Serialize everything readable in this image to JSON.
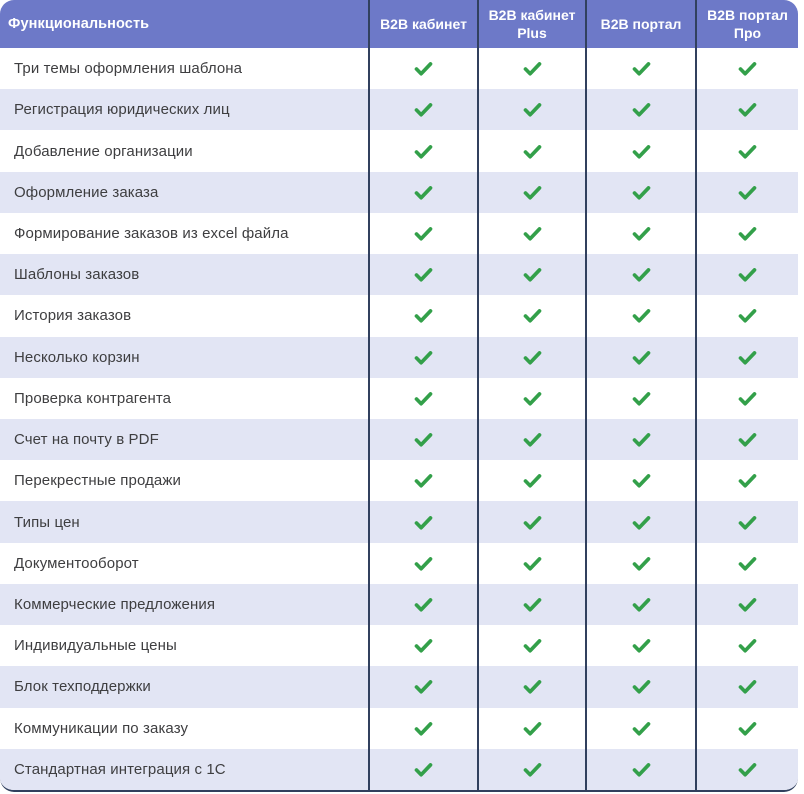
{
  "table": {
    "feature_column_header": "Функциональность",
    "plan_columns": [
      "B2B кабинет",
      "B2B кабинет Plus",
      "B2B портал",
      "B2B портал Про"
    ],
    "rows": [
      {
        "feature": "Три темы оформления шаблона",
        "availability": [
          true,
          true,
          true,
          true
        ]
      },
      {
        "feature": "Регистрация юридических лиц",
        "availability": [
          true,
          true,
          true,
          true
        ]
      },
      {
        "feature": "Добавление организации",
        "availability": [
          true,
          true,
          true,
          true
        ]
      },
      {
        "feature": "Оформление заказа",
        "availability": [
          true,
          true,
          true,
          true
        ]
      },
      {
        "feature": "Формирование заказов из excel файла",
        "availability": [
          true,
          true,
          true,
          true
        ]
      },
      {
        "feature": "Шаблоны заказов",
        "availability": [
          true,
          true,
          true,
          true
        ]
      },
      {
        "feature": "История заказов",
        "availability": [
          true,
          true,
          true,
          true
        ]
      },
      {
        "feature": "Несколько корзин",
        "availability": [
          true,
          true,
          true,
          true
        ]
      },
      {
        "feature": "Проверка контрагента",
        "availability": [
          true,
          true,
          true,
          true
        ]
      },
      {
        "feature": "Счет на почту в PDF",
        "availability": [
          true,
          true,
          true,
          true
        ]
      },
      {
        "feature": "Перекрестные продажи",
        "availability": [
          true,
          true,
          true,
          true
        ]
      },
      {
        "feature": "Типы цен",
        "availability": [
          true,
          true,
          true,
          true
        ]
      },
      {
        "feature": "Документооборот",
        "availability": [
          true,
          true,
          true,
          true
        ]
      },
      {
        "feature": "Коммерческие предложения",
        "availability": [
          true,
          true,
          true,
          true
        ]
      },
      {
        "feature": "Индивидуальные цены",
        "availability": [
          true,
          true,
          true,
          true
        ]
      },
      {
        "feature": "Блок техподдержки",
        "availability": [
          true,
          true,
          true,
          true
        ]
      },
      {
        "feature": "Коммуникации по заказу",
        "availability": [
          true,
          true,
          true,
          true
        ]
      },
      {
        "feature": "Стандартная интеграция с 1С",
        "availability": [
          true,
          true,
          true,
          true
        ]
      }
    ]
  },
  "icons": {
    "check": "checkmark-icon"
  },
  "colors": {
    "header_bg": "#6d79c8",
    "row_bg": "#ffffff",
    "row_alt_bg": "#e2e5f4",
    "divider": "#31405e",
    "check_green": "#33a04a",
    "header_text": "#ffffff",
    "feature_text": "#3e3e40"
  },
  "chart_data": {
    "type": "table",
    "title": "",
    "columns": [
      "Функциональность",
      "B2B кабинет",
      "B2B кабинет Plus",
      "B2B портал",
      "B2B портал Про"
    ],
    "rows": [
      [
        "Три темы оформления шаблона",
        "✔",
        "✔",
        "✔",
        "✔"
      ],
      [
        "Регистрация юридических лиц",
        "✔",
        "✔",
        "✔",
        "✔"
      ],
      [
        "Добавление организации",
        "✔",
        "✔",
        "✔",
        "✔"
      ],
      [
        "Оформление заказа",
        "✔",
        "✔",
        "✔",
        "✔"
      ],
      [
        "Формирование заказов из excel файла",
        "✔",
        "✔",
        "✔",
        "✔"
      ],
      [
        "Шаблоны заказов",
        "✔",
        "✔",
        "✔",
        "✔"
      ],
      [
        "История заказов",
        "✔",
        "✔",
        "✔",
        "✔"
      ],
      [
        "Несколько корзин",
        "✔",
        "✔",
        "✔",
        "✔"
      ],
      [
        "Проверка контрагента",
        "✔",
        "✔",
        "✔",
        "✔"
      ],
      [
        "Счет на почту в PDF",
        "✔",
        "✔",
        "✔",
        "✔"
      ],
      [
        "Перекрестные продажи",
        "✔",
        "✔",
        "✔",
        "✔"
      ],
      [
        "Типы цен",
        "✔",
        "✔",
        "✔",
        "✔"
      ],
      [
        "Документооборот",
        "✔",
        "✔",
        "✔",
        "✔"
      ],
      [
        "Коммерческие предложения",
        "✔",
        "✔",
        "✔",
        "✔"
      ],
      [
        "Индивидуальные цены",
        "✔",
        "✔",
        "✔",
        "✔"
      ],
      [
        "Блок техподдержки",
        "✔",
        "✔",
        "✔",
        "✔"
      ],
      [
        "Коммуникации по заказу",
        "✔",
        "✔",
        "✔",
        "✔"
      ],
      [
        "Стандартная интеграция с 1С",
        "✔",
        "✔",
        "✔",
        "✔"
      ]
    ]
  }
}
